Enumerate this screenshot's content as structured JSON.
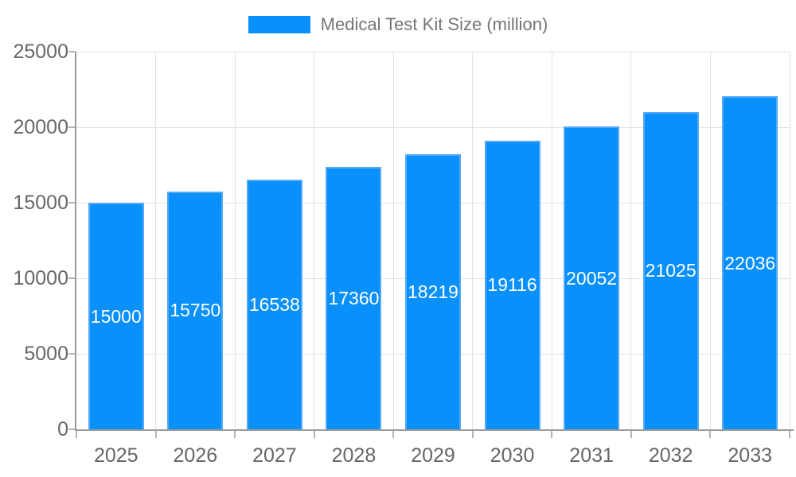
{
  "chart_data": {
    "type": "bar",
    "title": "Medical Test Kit Size (million)",
    "legend": [
      "Medical Test Kit Size (million)"
    ],
    "legend_position": "top-center",
    "categories": [
      "2025",
      "2026",
      "2027",
      "2028",
      "2029",
      "2030",
      "2031",
      "2032",
      "2033"
    ],
    "series": [
      {
        "name": "Medical Test Kit Size (million)",
        "values": [
          15000,
          15750,
          16538,
          17360,
          18219,
          19116,
          20052,
          21025,
          22036
        ]
      }
    ],
    "value_labels": [
      "15000",
      "15750",
      "16538",
      "17360",
      "18219",
      "19116",
      "20052",
      "21025",
      "22036"
    ],
    "value_label_placement": "inside-middle",
    "xlabel": "",
    "ylabel": "",
    "ylim": [
      0,
      25000
    ],
    "ytick_interval": 5000,
    "yticks": [
      0,
      5000,
      10000,
      15000,
      20000,
      25000
    ],
    "ytick_labels": [
      "0",
      "5000",
      "10000",
      "15000",
      "20000",
      "25000"
    ],
    "grid": "horizontal and vertical light gray gridlines"
  },
  "colors": {
    "background": "#ffffff",
    "bar_fill": "#0990fa",
    "bar_border": "#54aaf8",
    "grid": "#e2e2e2",
    "axis": "#9b9b9b",
    "tick_mark": "#b5b5b5",
    "tick_label": "#666666",
    "legend_text": "#757575",
    "value_label": "#ffffff"
  }
}
